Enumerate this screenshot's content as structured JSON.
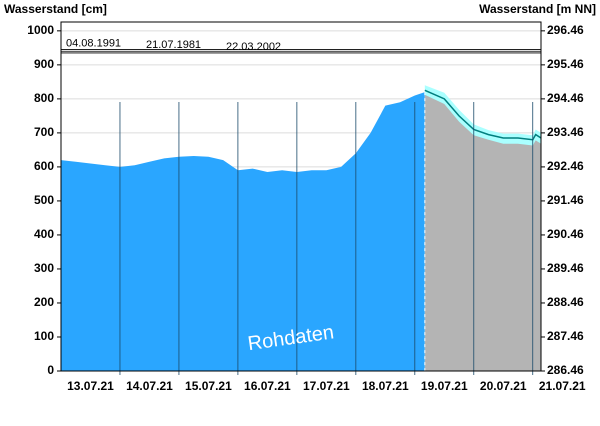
{
  "chart_data": {
    "type": "area",
    "ylabel": "Wasserstand [cm]",
    "y2label": "Wasserstand [m NN]",
    "annotation": "Rohdaten",
    "ylim": [
      0,
      1026
    ],
    "yticks": [
      0,
      100,
      200,
      300,
      400,
      500,
      600,
      700,
      800,
      900,
      1000
    ],
    "y2lim": [
      286.46,
      296.72
    ],
    "y2ticks": [
      286.46,
      287.46,
      288.46,
      289.46,
      290.46,
      291.46,
      292.46,
      293.46,
      294.46,
      295.46,
      296.46
    ],
    "xlim": [
      0,
      8.14
    ],
    "xticks": [
      {
        "value": 0.5,
        "label": "13.07.21"
      },
      {
        "value": 1.5,
        "label": "14.07.21"
      },
      {
        "value": 2.5,
        "label": "15.07.21"
      },
      {
        "value": 3.5,
        "label": "16.07.21"
      },
      {
        "value": 4.5,
        "label": "17.07.21"
      },
      {
        "value": 5.5,
        "label": "18.07.21"
      },
      {
        "value": 6.5,
        "label": "19.07.21"
      },
      {
        "value": 7.5,
        "label": "20.07.21"
      },
      {
        "value": 8.5,
        "label": "21.07.21"
      }
    ],
    "grid": true,
    "now": 6.17,
    "marks": [
      {
        "label": "04.08.1991",
        "value": 945
      },
      {
        "label": "21.07.1981",
        "value": 940
      },
      {
        "label": "22.03.2002",
        "value": 935
      }
    ],
    "series": [
      {
        "name": "measured",
        "color": "#2aa6ff",
        "x": [
          0,
          0.25,
          0.5,
          0.75,
          1.0,
          1.25,
          1.5,
          1.75,
          2.0,
          2.25,
          2.5,
          2.75,
          3.0,
          3.25,
          3.5,
          3.75,
          4.0,
          4.25,
          4.5,
          4.75,
          5.0,
          5.25,
          5.5,
          5.75,
          6.0,
          6.17
        ],
        "values": [
          620,
          615,
          610,
          605,
          600,
          605,
          615,
          625,
          630,
          632,
          630,
          620,
          590,
          595,
          585,
          590,
          585,
          590,
          590,
          600,
          640,
          700,
          780,
          790,
          810,
          820
        ]
      },
      {
        "name": "forecast-upper",
        "color": "#aaffff",
        "x": [
          6.17,
          6.5,
          6.75,
          7.0,
          7.25,
          7.5,
          7.75,
          8.0,
          8.05,
          8.14
        ],
        "values": [
          840,
          818,
          768,
          725,
          708,
          698,
          698,
          693,
          710,
          700
        ]
      },
      {
        "name": "forecast",
        "color": "#007f7f",
        "x": [
          6.17,
          6.5,
          6.75,
          7.0,
          7.25,
          7.5,
          7.75,
          8.0,
          8.05,
          8.14
        ],
        "values": [
          825,
          800,
          750,
          710,
          695,
          685,
          685,
          680,
          695,
          685
        ]
      },
      {
        "name": "forecast-lower",
        "color": "#b4b4b4",
        "x": [
          6.17,
          6.5,
          6.75,
          7.0,
          7.25,
          7.5,
          7.75,
          8.0,
          8.05,
          8.14
        ],
        "values": [
          812,
          785,
          733,
          693,
          680,
          668,
          668,
          663,
          678,
          668
        ]
      }
    ]
  }
}
